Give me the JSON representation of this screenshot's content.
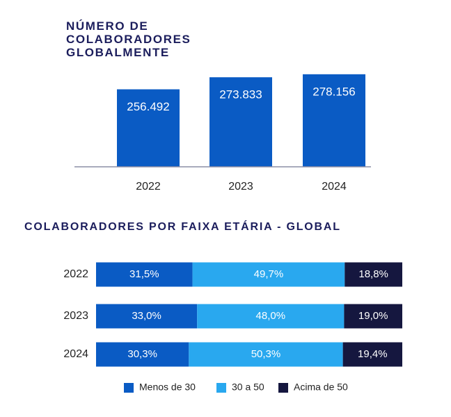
{
  "chart_data": [
    {
      "type": "bar",
      "title": "NÚMERO DE COLABORADORES GLOBALMENTE",
      "categories": [
        "2022",
        "2023",
        "2024"
      ],
      "values": [
        256492,
        273833,
        278156
      ],
      "value_labels": [
        "256.492",
        "273.833",
        "278.156"
      ],
      "color": "#0a5bc4",
      "ylim": [
        145000,
        285000
      ]
    },
    {
      "type": "bar",
      "orientation": "horizontal",
      "stacked": true,
      "title": "COLABORADORES POR FAIXA ETÁRIA - GLOBAL",
      "categories": [
        "2022",
        "2023",
        "2024"
      ],
      "xlim": [
        0,
        100
      ],
      "series": [
        {
          "name": "Menos de 30",
          "color": "#0a5bc4",
          "values": [
            31.5,
            33.0,
            30.3
          ],
          "value_labels": [
            "31,5%",
            "33,0%",
            "30,3%"
          ]
        },
        {
          "name": "30 a 50",
          "color": "#29a8ef",
          "values": [
            49.7,
            48.0,
            50.3
          ],
          "value_labels": [
            "49,7%",
            "48,0%",
            "50,3%"
          ]
        },
        {
          "name": "Acima de 50",
          "color": "#15173f",
          "values": [
            18.8,
            19.0,
            19.4
          ],
          "value_labels": [
            "18,8%",
            "19,0%",
            "19,4%"
          ]
        }
      ]
    }
  ]
}
